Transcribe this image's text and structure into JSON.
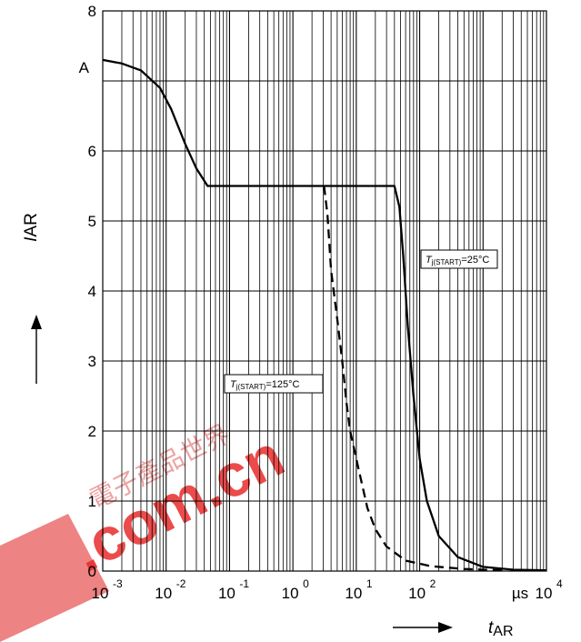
{
  "chart_data": {
    "type": "line",
    "title": "",
    "x_scale": "log",
    "xlim": [
      0.001,
      10000
    ],
    "ylim": [
      0,
      8
    ],
    "grid": true,
    "y_ticks": [
      "0",
      "1",
      "2",
      "3",
      "4",
      "5",
      "6",
      "8"
    ],
    "y_tick_values": [
      0,
      1,
      2,
      3,
      4,
      5,
      6,
      8
    ],
    "y_unit": "A",
    "x_ticks": [
      {
        "base": "10",
        "exp": "-3",
        "value": 0.001
      },
      {
        "base": "10",
        "exp": "-2",
        "value": 0.01
      },
      {
        "base": "10",
        "exp": "-1",
        "value": 0.1
      },
      {
        "base": "10",
        "exp": "0",
        "value": 1
      },
      {
        "base": "10",
        "exp": "1",
        "value": 10
      },
      {
        "base": "10",
        "exp": "2",
        "value": 100
      },
      {
        "base": "10",
        "exp": "4",
        "value": 10000
      }
    ],
    "x_unit": "µs",
    "ylabel": {
      "main": "I",
      "sub": "AR"
    },
    "xlabel": {
      "main": "t",
      "sub": "AR"
    },
    "series": [
      {
        "name": "T j(START)=25°C",
        "style": "solid",
        "points": [
          [
            0.001,
            7.3
          ],
          [
            0.002,
            7.25
          ],
          [
            0.004,
            7.15
          ],
          [
            0.008,
            6.9
          ],
          [
            0.012,
            6.6
          ],
          [
            0.02,
            6.1
          ],
          [
            0.03,
            5.75
          ],
          [
            0.045,
            5.5
          ],
          [
            0.1,
            5.5
          ],
          [
            1,
            5.5
          ],
          [
            10,
            5.5
          ],
          [
            40,
            5.5
          ],
          [
            48,
            5.2
          ],
          [
            55,
            4.5
          ],
          [
            65,
            3.5
          ],
          [
            80,
            2.5
          ],
          [
            100,
            1.6
          ],
          [
            130,
            1.0
          ],
          [
            200,
            0.5
          ],
          [
            400,
            0.2
          ],
          [
            1000,
            0.06
          ],
          [
            3000,
            0.02
          ],
          [
            10000,
            0.01
          ]
        ]
      },
      {
        "name": "T j(START)=125°C",
        "style": "dashed",
        "points": [
          [
            3.1,
            5.5
          ],
          [
            3.5,
            5.1
          ],
          [
            4,
            4.3
          ],
          [
            5,
            3.6
          ],
          [
            6,
            3.0
          ],
          [
            7,
            2.4
          ],
          [
            8,
            2.0
          ],
          [
            10,
            1.6
          ],
          [
            15,
            0.9
          ],
          [
            20,
            0.6
          ],
          [
            30,
            0.35
          ],
          [
            60,
            0.15
          ],
          [
            150,
            0.07
          ],
          [
            500,
            0.03
          ],
          [
            2000,
            0.01
          ]
        ]
      }
    ],
    "annotations": [
      {
        "main": "T",
        "sub": "j(START)",
        "rest": "=25°C",
        "series": 0
      },
      {
        "main": "T",
        "sub": "j(START)",
        "rest": "=125°C",
        "series": 1
      }
    ]
  },
  "watermark": {
    "text": ".com.cn",
    "glyphs": "電子產品世界"
  }
}
